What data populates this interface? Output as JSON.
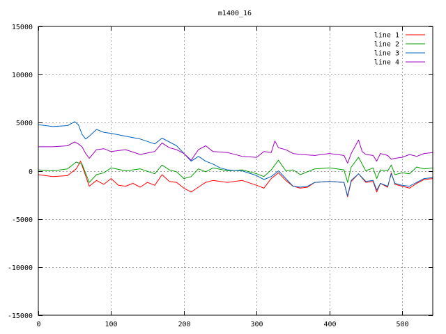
{
  "chart_data": {
    "type": "line",
    "title": "m1400_16",
    "xlabel": "",
    "ylabel": "",
    "xlim": [
      0,
      542
    ],
    "ylim": [
      -15000,
      15000
    ],
    "xticks": [
      0,
      100,
      200,
      300,
      400,
      500
    ],
    "yticks": [
      -15000,
      -10000,
      -5000,
      0,
      5000,
      10000,
      15000
    ],
    "grid": true,
    "legend_position": "top-right",
    "colors": {
      "line 1": "#ff0000",
      "line 2": "#00a000",
      "line 3": "#0060c0",
      "line 4": "#a000c0"
    },
    "series": [
      {
        "name": "line 1",
        "x": [
          0,
          20,
          40,
          52,
          58,
          70,
          80,
          90,
          100,
          110,
          120,
          130,
          140,
          150,
          160,
          170,
          180,
          190,
          200,
          210,
          220,
          230,
          240,
          260,
          280,
          300,
          310,
          320,
          330,
          340,
          350,
          360,
          370,
          380,
          400,
          420,
          425,
          430,
          440,
          450,
          460,
          465,
          470,
          480,
          485,
          490,
          500,
          510,
          520,
          530,
          542
        ],
        "y": [
          -400,
          -600,
          -500,
          200,
          1000,
          -1600,
          -1000,
          -1400,
          -800,
          -1500,
          -1600,
          -1300,
          -1700,
          -1200,
          -1500,
          -400,
          -1100,
          -1200,
          -1800,
          -2200,
          -1700,
          -1200,
          -1000,
          -1200,
          -1000,
          -1500,
          -1800,
          -800,
          -200,
          -1000,
          -1600,
          -1800,
          -1700,
          -1200,
          -1100,
          -1200,
          -2700,
          -1100,
          -300,
          -1200,
          -1100,
          -2200,
          -1300,
          -1700,
          -200,
          -1400,
          -1600,
          -1800,
          -1300,
          -900,
          -800
        ]
      },
      {
        "name": "line 2",
        "x": [
          0,
          20,
          40,
          52,
          60,
          70,
          80,
          90,
          100,
          120,
          140,
          160,
          170,
          180,
          190,
          200,
          210,
          220,
          230,
          240,
          260,
          280,
          300,
          310,
          320,
          330,
          340,
          350,
          360,
          380,
          400,
          420,
          425,
          430,
          440,
          450,
          460,
          465,
          470,
          480,
          485,
          490,
          500,
          510,
          520,
          530,
          542
        ],
        "y": [
          100,
          0,
          200,
          900,
          700,
          -1200,
          -400,
          -200,
          300,
          0,
          200,
          -300,
          600,
          100,
          -100,
          -800,
          -600,
          200,
          -100,
          300,
          0,
          100,
          -300,
          -600,
          100,
          1100,
          0,
          100,
          -400,
          200,
          300,
          100,
          -1200,
          400,
          1400,
          0,
          300,
          -800,
          100,
          0,
          600,
          -400,
          -200,
          -300,
          400,
          200,
          300
        ]
      },
      {
        "name": "line 3",
        "x": [
          0,
          20,
          40,
          50,
          55,
          60,
          65,
          70,
          80,
          90,
          100,
          120,
          140,
          160,
          170,
          180,
          190,
          200,
          210,
          220,
          230,
          240,
          250,
          260,
          280,
          300,
          310,
          320,
          330,
          340,
          350,
          360,
          370,
          380,
          400,
          420,
          425,
          430,
          440,
          450,
          460,
          465,
          470,
          480,
          485,
          490,
          500,
          510,
          520,
          530,
          542
        ],
        "y": [
          4800,
          4600,
          4700,
          5100,
          4800,
          3800,
          3300,
          3600,
          4300,
          4000,
          3900,
          3600,
          3300,
          2800,
          3400,
          3000,
          2600,
          1800,
          1000,
          1500,
          1000,
          700,
          300,
          100,
          0,
          -500,
          -900,
          -600,
          0,
          -800,
          -1600,
          -1700,
          -1600,
          -1200,
          -1100,
          -1200,
          -2600,
          -1000,
          -300,
          -1100,
          -1000,
          -2000,
          -1300,
          -1600,
          -300,
          -1300,
          -1500,
          -1600,
          -1200,
          -800,
          -700
        ]
      },
      {
        "name": "line 4",
        "x": [
          0,
          20,
          40,
          50,
          55,
          60,
          65,
          70,
          80,
          90,
          100,
          120,
          140,
          160,
          170,
          180,
          190,
          200,
          210,
          220,
          230,
          240,
          260,
          280,
          300,
          310,
          320,
          325,
          330,
          340,
          350,
          360,
          380,
          400,
          420,
          425,
          430,
          440,
          445,
          450,
          460,
          465,
          470,
          480,
          485,
          490,
          500,
          510,
          520,
          530,
          542
        ],
        "y": [
          2500,
          2500,
          2600,
          3000,
          2800,
          2500,
          1800,
          1300,
          2200,
          2300,
          2000,
          2200,
          1700,
          2000,
          2900,
          2400,
          2200,
          1800,
          1100,
          2200,
          2600,
          2000,
          1900,
          1500,
          1400,
          2000,
          1900,
          3100,
          2400,
          2200,
          1800,
          1700,
          1600,
          1800,
          1600,
          800,
          1800,
          3200,
          2000,
          1700,
          1600,
          1000,
          1800,
          1600,
          1200,
          1300,
          1400,
          1700,
          1500,
          1800,
          1900
        ]
      }
    ]
  }
}
